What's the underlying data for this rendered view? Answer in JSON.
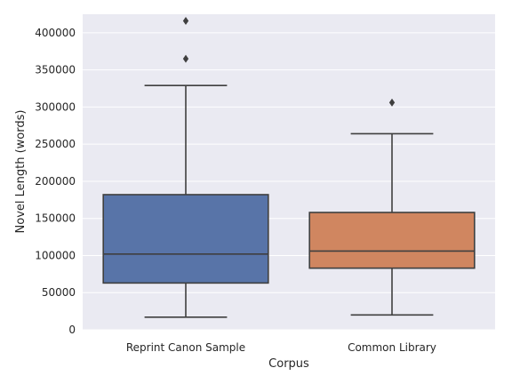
{
  "chart_data": {
    "type": "box",
    "xlabel": "Corpus",
    "ylabel": "Novel Length (words)",
    "ylim": [
      0,
      425000
    ],
    "yticks": [
      0,
      50000,
      100000,
      150000,
      200000,
      250000,
      300000,
      350000,
      400000
    ],
    "ytick_labels": [
      "0",
      "50000",
      "100000",
      "150000",
      "200000",
      "250000",
      "300000",
      "350000",
      "400000"
    ],
    "grid": true,
    "background": "#EAEAF2",
    "categories": [
      {
        "name": "Reprint Canon Sample",
        "color": "#5874A8",
        "whisker_low": 17000,
        "q1": 63000,
        "median": 102000,
        "q3": 182000,
        "whisker_high": 329000,
        "outliers": [
          365000,
          416000
        ]
      },
      {
        "name": "Common Library",
        "color": "#D08660",
        "whisker_low": 20000,
        "q1": 83000,
        "median": 106000,
        "q3": 158000,
        "whisker_high": 264000,
        "outliers": [
          306000
        ]
      }
    ]
  }
}
